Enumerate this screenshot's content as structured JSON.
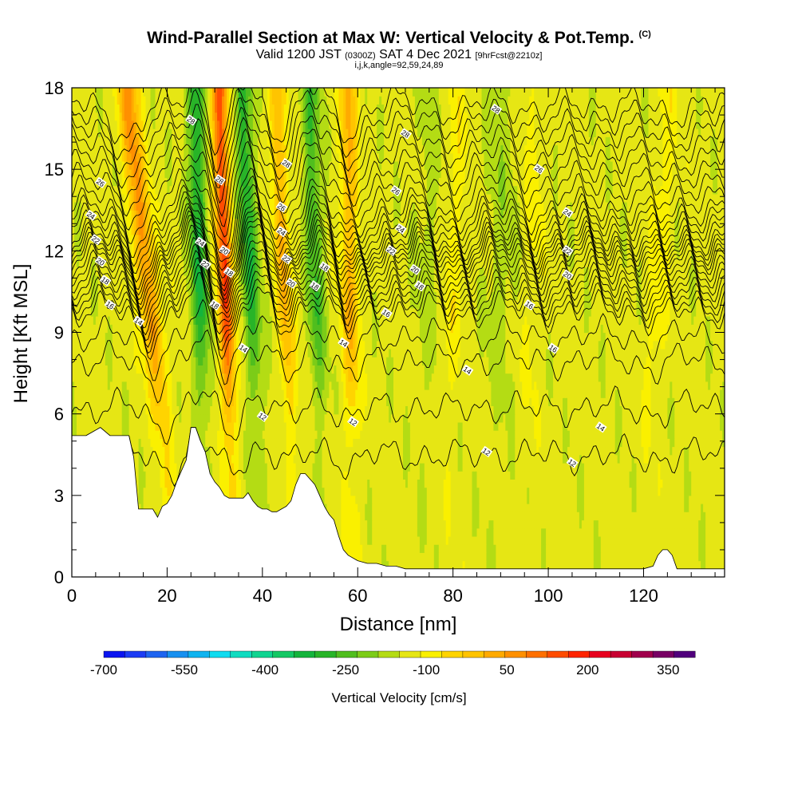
{
  "header": {
    "title": "Wind-Parallel Section at Max W: Vertical Velocity & Pot.Temp.",
    "title_mark": "(C)",
    "subtitle_main": "Valid 1200 JST",
    "subtitle_z": "(0300Z)",
    "subtitle_date": "SAT 4 Dec 2021",
    "subtitle_fcst": "[9hrFcst@2210z]",
    "subsubtitle": "i,j,k,angle=92,59,24,89"
  },
  "chart_data": {
    "type": "heatmap",
    "xlabel": "Distance [nm]",
    "ylabel": "Height [Kft MSL]",
    "xlim": [
      0,
      137
    ],
    "ylim": [
      0,
      18
    ],
    "xticks": [
      0,
      20,
      40,
      60,
      80,
      100,
      120
    ],
    "yticks": [
      0,
      3,
      6,
      9,
      12,
      15,
      18
    ],
    "colorbar": {
      "title": "Vertical Velocity [cm/s]",
      "labels": [
        "-700",
        "-550",
        "-400",
        "-250",
        "-100",
        "50",
        "200",
        "350"
      ],
      "label_values": [
        -700,
        -550,
        -400,
        -250,
        -100,
        50,
        200,
        350
      ],
      "min": -700,
      "max": 400,
      "step": 50,
      "colors": [
        "#0a14f0",
        "#1c3cf4",
        "#1e64f0",
        "#1890f0",
        "#10b4f0",
        "#10dcf0",
        "#10dcc0",
        "#10d490",
        "#14c864",
        "#14b43c",
        "#28b428",
        "#50be1e",
        "#7ccc18",
        "#b4dc14",
        "#e6e614",
        "#faf000",
        "#ffd400",
        "#ffc400",
        "#ffaa00",
        "#ff9000",
        "#ff7000",
        "#ff4c00",
        "#ff2400",
        "#e8001e",
        "#c80032",
        "#a0004c",
        "#780064",
        "#50007c"
      ]
    },
    "terrain_profile": {
      "x": [
        0,
        3,
        6,
        8,
        10,
        12,
        13,
        14,
        17,
        18,
        19,
        20,
        21,
        22,
        23,
        24,
        25,
        26,
        27,
        28,
        29,
        30,
        31,
        32,
        33,
        34,
        35,
        36,
        37,
        38,
        39,
        40,
        41,
        42,
        43,
        44,
        45,
        46,
        47,
        48,
        49,
        50,
        51,
        52,
        53,
        54,
        55,
        56,
        57,
        58,
        60,
        62,
        64,
        66,
        68,
        70,
        72,
        80,
        90,
        100,
        110,
        120,
        122,
        123,
        124,
        125,
        126,
        127,
        128,
        130,
        137
      ],
      "h": [
        5.2,
        5.2,
        5.5,
        5.2,
        5.2,
        5.2,
        4.4,
        2.5,
        2.5,
        2.2,
        2.6,
        2.7,
        3.0,
        3.5,
        3.9,
        4.3,
        5.5,
        5.5,
        5.0,
        4.6,
        3.8,
        3.5,
        3.3,
        3.0,
        2.9,
        2.9,
        2.9,
        2.9,
        3.1,
        2.8,
        2.6,
        2.5,
        2.5,
        2.4,
        2.4,
        2.5,
        2.6,
        2.8,
        3.4,
        3.8,
        3.8,
        3.6,
        3.4,
        3.0,
        2.6,
        2.3,
        2.1,
        1.5,
        1.0,
        0.8,
        0.6,
        0.5,
        0.5,
        0.4,
        0.4,
        0.3,
        0.3,
        0.3,
        0.3,
        0.3,
        0.3,
        0.3,
        0.4,
        0.8,
        1.0,
        1.0,
        0.8,
        0.3,
        0.3,
        0.3,
        0.3
      ]
    },
    "theta_contours": [
      {
        "label": "12",
        "base": 4.5,
        "labels_at": [
          [
            40,
            5.9
          ],
          [
            59,
            5.7
          ],
          [
            87,
            4.6
          ],
          [
            105,
            4.2
          ]
        ]
      },
      {
        "label": "14",
        "base": 8.0,
        "labels_at": [
          [
            14,
            9.4
          ],
          [
            36,
            8.4
          ],
          [
            57,
            8.6
          ],
          [
            83,
            7.6
          ],
          [
            111,
            5.5
          ]
        ]
      },
      {
        "label": "16",
        "base": 9.8,
        "labels_at": [
          [
            8,
            10.0
          ],
          [
            66,
            9.7
          ],
          [
            96,
            10.0
          ],
          [
            101,
            8.4
          ]
        ]
      },
      {
        "label": "18",
        "base": 10.8,
        "labels_at": [
          [
            7,
            10.9
          ],
          [
            30,
            10.0
          ],
          [
            33,
            11.2
          ],
          [
            51,
            10.7
          ],
          [
            53,
            11.4
          ],
          [
            73,
            10.7
          ]
        ]
      },
      {
        "label": "20",
        "base": 11.8,
        "labels_at": [
          [
            6,
            11.6
          ],
          [
            32,
            12.0
          ],
          [
            46,
            10.8
          ],
          [
            72,
            11.3
          ],
          [
            104,
            11.1
          ]
        ]
      },
      {
        "label": "22",
        "base": 12.5,
        "labels_at": [
          [
            5,
            12.4
          ],
          [
            28,
            11.5
          ],
          [
            45,
            11.7
          ],
          [
            67,
            12.0
          ],
          [
            104,
            12.0
          ]
        ]
      },
      {
        "label": "24",
        "base": 13.6,
        "labels_at": [
          [
            4,
            13.3
          ],
          [
            27,
            12.3
          ],
          [
            44,
            12.7
          ],
          [
            69,
            12.8
          ],
          [
            104,
            13.4
          ]
        ]
      },
      {
        "label": "26",
        "base": 15.5,
        "labels_at": [
          [
            6,
            14.5
          ],
          [
            44,
            13.6
          ],
          [
            68,
            14.2
          ],
          [
            98,
            15.0
          ]
        ]
      },
      {
        "label": "28",
        "base": 17.4,
        "labels_at": [
          [
            25,
            16.8
          ],
          [
            31,
            14.6
          ],
          [
            45,
            15.2
          ],
          [
            70,
            16.3
          ],
          [
            89,
            17.2
          ]
        ]
      }
    ],
    "updraft_bands": [
      {
        "x_bottom": 22,
        "x_top": 12,
        "w": 2.2,
        "value": 260
      },
      {
        "x_bottom": 34,
        "x_top": 31,
        "w": 1.6,
        "value": 380
      },
      {
        "x_bottom": 47,
        "x_top": 43,
        "w": 1.6,
        "value": 200
      },
      {
        "x_bottom": 59,
        "x_top": 58,
        "w": 1.8,
        "value": 200
      },
      {
        "x_bottom": 78,
        "x_top": 81,
        "w": 2.0,
        "value": 80
      },
      {
        "x_bottom": 96,
        "x_top": 97,
        "w": 2.0,
        "value": 60
      },
      {
        "x_bottom": 120,
        "x_top": 125,
        "w": 2.0,
        "value": 80
      }
    ],
    "downdraft_bands": [
      {
        "x_bottom": 28,
        "x_top": 26,
        "w": 1.8,
        "value": -200
      },
      {
        "x_bottom": 40,
        "x_top": 36,
        "w": 1.8,
        "value": -190
      },
      {
        "x_bottom": 53,
        "x_top": 50,
        "w": 1.8,
        "value": -150
      },
      {
        "x_bottom": 75,
        "x_top": 75,
        "w": 3.0,
        "value": -20
      },
      {
        "x_bottom": 90,
        "x_top": 90,
        "w": 3.0,
        "value": -30
      }
    ]
  }
}
